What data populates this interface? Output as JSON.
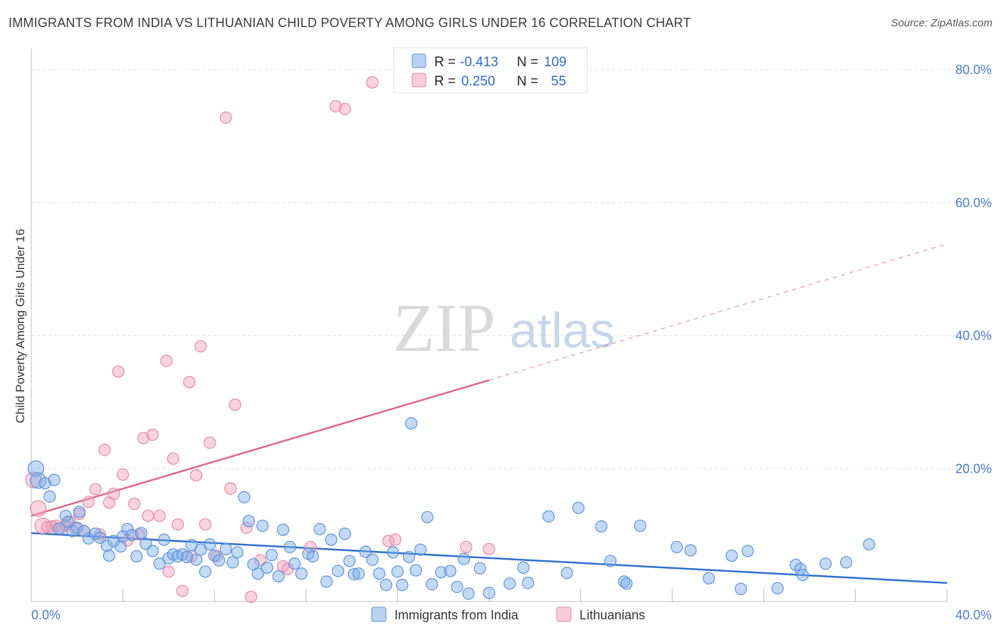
{
  "header": {
    "title": "IMMIGRANTS FROM INDIA VS LITHUANIAN CHILD POVERTY AMONG GIRLS UNDER 16 CORRELATION CHART",
    "source": "Source: ZipAtlas.com"
  },
  "watermark": {
    "zip": "ZIP",
    "atlas": "atlas"
  },
  "legend": {
    "rows": [
      {
        "r_label": "R =",
        "r_value": "-0.413",
        "n_label": "N =",
        "n_value": "109",
        "color": "#7aaee8"
      },
      {
        "r_label": "R =",
        "r_value": "0.250",
        "n_label": "N =",
        "n_value": "55",
        "color": "#f2a0b8"
      }
    ]
  },
  "chart_data": {
    "type": "scatter",
    "title": "IMMIGRANTS FROM INDIA VS LITHUANIAN CHILD POVERTY AMONG GIRLS UNDER 16 CORRELATION CHART",
    "xlabel": "",
    "ylabel": "Child Poverty Among Girls Under 16",
    "xlim": [
      0,
      40
    ],
    "ylim": [
      0,
      80
    ],
    "x_tick_labels": [
      "0.0%",
      "40.0%"
    ],
    "y_ticks": [
      20,
      40,
      60,
      80
    ],
    "y_tick_labels": [
      "20.0%",
      "40.0%",
      "60.0%",
      "80.0%"
    ],
    "grid": true,
    "legend_position": "bottom-center",
    "series": [
      {
        "name": "Immigrants from India",
        "color": "#7aaee8",
        "stroke": "#5b93dc",
        "trend": {
          "x": [
            0,
            40
          ],
          "y": [
            10.3,
            2.8
          ],
          "color": "#2f6fd1"
        },
        "points": [
          [
            0.2,
            20.0
          ],
          [
            0.3,
            18.2
          ],
          [
            0.6,
            17.8
          ],
          [
            0.8,
            15.8
          ],
          [
            1.0,
            18.3
          ],
          [
            1.2,
            11.0
          ],
          [
            1.5,
            12.9
          ],
          [
            1.6,
            12.0
          ],
          [
            1.8,
            10.6
          ],
          [
            2.0,
            11.1
          ],
          [
            2.1,
            13.5
          ],
          [
            2.3,
            10.6
          ],
          [
            2.5,
            9.5
          ],
          [
            2.8,
            10.2
          ],
          [
            3.0,
            9.6
          ],
          [
            3.3,
            8.4
          ],
          [
            3.4,
            6.9
          ],
          [
            3.6,
            9.1
          ],
          [
            3.9,
            8.3
          ],
          [
            4.0,
            9.8
          ],
          [
            4.2,
            10.9
          ],
          [
            4.4,
            10.0
          ],
          [
            4.6,
            6.8
          ],
          [
            4.8,
            10.3
          ],
          [
            5.0,
            8.7
          ],
          [
            5.3,
            7.6
          ],
          [
            5.6,
            5.7
          ],
          [
            5.8,
            9.3
          ],
          [
            6.0,
            6.5
          ],
          [
            6.2,
            7.1
          ],
          [
            6.4,
            6.8
          ],
          [
            6.6,
            7.1
          ],
          [
            6.8,
            6.7
          ],
          [
            7.0,
            8.5
          ],
          [
            7.2,
            6.3
          ],
          [
            7.4,
            7.8
          ],
          [
            7.6,
            4.5
          ],
          [
            7.8,
            8.6
          ],
          [
            8.0,
            6.9
          ],
          [
            8.2,
            6.2
          ],
          [
            8.5,
            7.9
          ],
          [
            8.8,
            5.9
          ],
          [
            9.0,
            7.4
          ],
          [
            9.3,
            15.7
          ],
          [
            9.5,
            12.1
          ],
          [
            9.7,
            5.6
          ],
          [
            9.9,
            4.2
          ],
          [
            10.1,
            11.4
          ],
          [
            10.3,
            5.1
          ],
          [
            10.5,
            7.0
          ],
          [
            10.8,
            3.8
          ],
          [
            11.0,
            10.8
          ],
          [
            11.3,
            8.2
          ],
          [
            11.5,
            5.7
          ],
          [
            11.8,
            4.2
          ],
          [
            12.1,
            7.2
          ],
          [
            12.3,
            6.8
          ],
          [
            12.6,
            10.9
          ],
          [
            12.9,
            3.0
          ],
          [
            13.1,
            9.3
          ],
          [
            13.4,
            4.6
          ],
          [
            13.7,
            10.2
          ],
          [
            13.9,
            6.1
          ],
          [
            14.1,
            4.1
          ],
          [
            14.3,
            4.2
          ],
          [
            14.6,
            7.5
          ],
          [
            14.9,
            6.3
          ],
          [
            15.2,
            4.2
          ],
          [
            15.5,
            2.5
          ],
          [
            15.8,
            7.4
          ],
          [
            16.0,
            4.5
          ],
          [
            16.2,
            2.5
          ],
          [
            16.5,
            6.7
          ],
          [
            16.8,
            4.7
          ],
          [
            17.0,
            7.8
          ],
          [
            17.3,
            12.7
          ],
          [
            17.5,
            2.6
          ],
          [
            17.9,
            4.4
          ],
          [
            18.3,
            4.6
          ],
          [
            18.6,
            2.2
          ],
          [
            18.9,
            6.4
          ],
          [
            19.1,
            1.2
          ],
          [
            19.6,
            5.0
          ],
          [
            20.0,
            1.3
          ],
          [
            20.9,
            2.7
          ],
          [
            21.5,
            5.1
          ],
          [
            21.7,
            2.8
          ],
          [
            22.6,
            12.8
          ],
          [
            23.4,
            4.3
          ],
          [
            23.9,
            14.1
          ],
          [
            24.9,
            11.3
          ],
          [
            25.3,
            6.1
          ],
          [
            25.9,
            3.0
          ],
          [
            26.0,
            2.7
          ],
          [
            26.6,
            11.4
          ],
          [
            28.2,
            8.2
          ],
          [
            28.8,
            7.7
          ],
          [
            29.6,
            3.5
          ],
          [
            30.6,
            6.9
          ],
          [
            31.0,
            1.9
          ],
          [
            31.3,
            7.6
          ],
          [
            32.6,
            2.0
          ],
          [
            33.4,
            5.5
          ],
          [
            33.6,
            4.9
          ],
          [
            33.7,
            4.0
          ],
          [
            34.7,
            5.7
          ],
          [
            35.6,
            5.9
          ],
          [
            36.6,
            8.6
          ],
          [
            16.6,
            26.8
          ]
        ]
      },
      {
        "name": "Lithuanians",
        "color": "#f2a0b8",
        "stroke": "#e987a6",
        "trend": {
          "x": [
            0,
            20
          ],
          "y": [
            12.9,
            33.3
          ],
          "dashed_to": [
            40,
            53.8
          ],
          "color": "#e0668f"
        },
        "points": [
          [
            0.1,
            18.3
          ],
          [
            0.3,
            14.0
          ],
          [
            0.5,
            11.4
          ],
          [
            0.7,
            11.2
          ],
          [
            0.9,
            11.3
          ],
          [
            1.1,
            11.4
          ],
          [
            1.3,
            11.0
          ],
          [
            1.5,
            11.5
          ],
          [
            1.7,
            12.0
          ],
          [
            1.9,
            11.1
          ],
          [
            2.1,
            13.2
          ],
          [
            2.3,
            10.6
          ],
          [
            2.5,
            15.0
          ],
          [
            2.8,
            16.9
          ],
          [
            3.0,
            10.1
          ],
          [
            3.2,
            22.8
          ],
          [
            3.4,
            14.9
          ],
          [
            3.6,
            16.2
          ],
          [
            3.8,
            34.6
          ],
          [
            4.0,
            19.1
          ],
          [
            4.2,
            9.2
          ],
          [
            4.5,
            14.7
          ],
          [
            4.7,
            10.1
          ],
          [
            4.9,
            24.6
          ],
          [
            5.1,
            12.9
          ],
          [
            5.3,
            25.1
          ],
          [
            5.6,
            12.9
          ],
          [
            5.9,
            36.2
          ],
          [
            6.0,
            4.5
          ],
          [
            6.2,
            21.5
          ],
          [
            6.4,
            11.6
          ],
          [
            6.6,
            1.6
          ],
          [
            6.9,
            33.0
          ],
          [
            7.0,
            6.8
          ],
          [
            7.2,
            19.0
          ],
          [
            7.4,
            38.4
          ],
          [
            7.6,
            11.6
          ],
          [
            7.8,
            23.9
          ],
          [
            8.1,
            6.8
          ],
          [
            8.5,
            72.8
          ],
          [
            8.7,
            17.0
          ],
          [
            8.9,
            29.6
          ],
          [
            9.4,
            11.1
          ],
          [
            9.6,
            0.7
          ],
          [
            10.0,
            6.2
          ],
          [
            11.0,
            5.3
          ],
          [
            11.2,
            4.9
          ],
          [
            12.2,
            8.2
          ],
          [
            13.3,
            74.5
          ],
          [
            13.7,
            74.1
          ],
          [
            14.9,
            78.1
          ],
          [
            15.6,
            9.1
          ],
          [
            15.9,
            9.3
          ],
          [
            19.0,
            8.2
          ],
          [
            20.0,
            7.9
          ]
        ]
      }
    ]
  }
}
